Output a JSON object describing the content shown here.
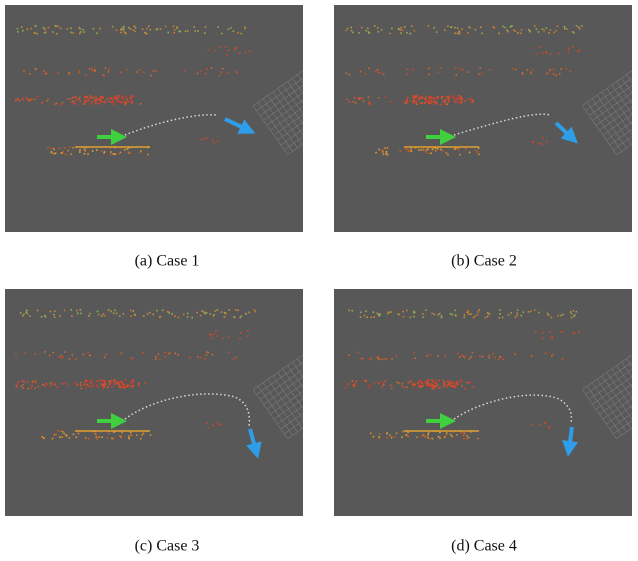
{
  "figure": {
    "panels": [
      {
        "caption": "(a) Case 1"
      },
      {
        "caption": "(b) Case 2"
      },
      {
        "caption": "(c) Case 3"
      },
      {
        "caption": "(d) Case 4"
      }
    ]
  }
}
